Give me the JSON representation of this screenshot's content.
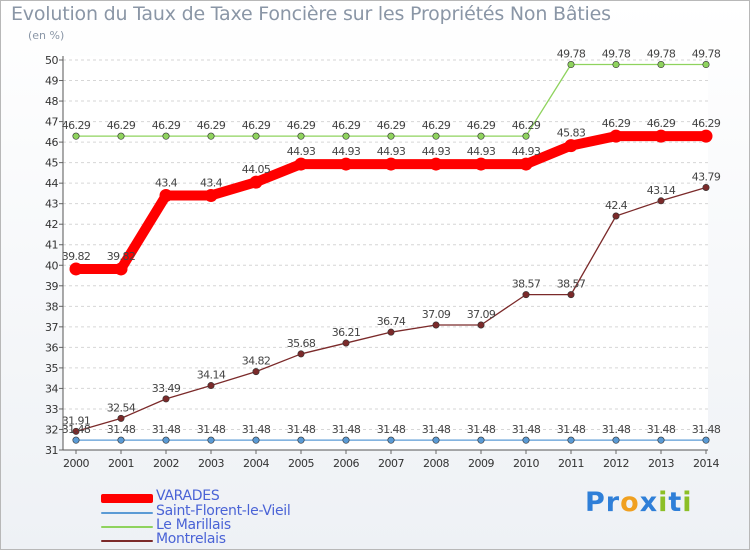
{
  "title": "Evolution du Taux de Taxe Foncière sur les Propriétés Non Bâties",
  "unit_label": "(en %)",
  "logo": {
    "text": "Proxiti",
    "letters": [
      "P",
      "r",
      "o",
      "x",
      "i",
      "t",
      "i"
    ],
    "colors": [
      "#2f7fd8",
      "#2f7fd8",
      "#f0a020",
      "#2f7fd8",
      "#8cbf26",
      "#2f7fd8",
      "#8cbf26"
    ]
  },
  "chart_data": {
    "type": "line",
    "title": "Evolution du Taux de Taxe Foncière sur les Propriétés Non Bâties",
    "ylabel": "(en %)",
    "ylim": [
      31,
      50
    ],
    "yticks": [
      31,
      32,
      33,
      34,
      35,
      36,
      37,
      38,
      39,
      40,
      41,
      42,
      43,
      44,
      45,
      46,
      47,
      48,
      49,
      50
    ],
    "x": [
      "2000",
      "2001",
      "2002",
      "2003",
      "2004",
      "2005",
      "2006",
      "2007",
      "2008",
      "2009",
      "2010",
      "2011",
      "2012",
      "2013",
      "2014"
    ],
    "grid": "horizontal dashed",
    "legend": "bottom-left",
    "series": [
      {
        "name": "VARADES",
        "color": "#ff0000",
        "style": "thick",
        "values": [
          39.82,
          39.82,
          43.4,
          43.4,
          44.05,
          44.93,
          44.93,
          44.93,
          44.93,
          44.93,
          44.93,
          45.83,
          46.29,
          46.29,
          46.29
        ],
        "labels": [
          "39.82",
          "39.82",
          "43.4",
          "43.4",
          "44.05",
          "44.93",
          "44.93",
          "44.93",
          "44.93",
          "44.93",
          "44.93",
          "45.83",
          "46.29",
          "46.29",
          "46.29"
        ]
      },
      {
        "name": "Saint-Florent-le-Vieil",
        "color": "#5b9bd5",
        "style": "thin",
        "values": [
          31.48,
          31.48,
          31.48,
          31.48,
          31.48,
          31.48,
          31.48,
          31.48,
          31.48,
          31.48,
          31.48,
          31.48,
          31.48,
          31.48,
          31.48
        ],
        "labels": [
          "31.48",
          "31.48",
          "31.48",
          "31.48",
          "31.48",
          "31.48",
          "31.48",
          "31.48",
          "31.48",
          "31.48",
          "31.48",
          "31.48",
          "31.48",
          "31.48",
          "31.48"
        ]
      },
      {
        "name": "Le Marillais",
        "color": "#8fd35e",
        "style": "thin",
        "values": [
          46.29,
          46.29,
          46.29,
          46.29,
          46.29,
          46.29,
          46.29,
          46.29,
          46.29,
          46.29,
          46.29,
          49.78,
          49.78,
          49.78,
          49.78
        ],
        "labels": [
          "46.29",
          "46.29",
          "46.29",
          "46.29",
          "46.29",
          "46.29",
          "46.29",
          "46.29",
          "46.29",
          "46.29",
          "46.29",
          "49.78",
          "49.78",
          "49.78",
          "49.78"
        ]
      },
      {
        "name": "Montrelais",
        "color": "#7b2a2a",
        "style": "thin",
        "values": [
          31.91,
          32.54,
          33.49,
          34.14,
          34.82,
          35.68,
          36.21,
          36.74,
          37.09,
          37.09,
          38.57,
          38.57,
          42.4,
          43.14,
          43.79
        ],
        "labels": [
          "31.91",
          "32.54",
          "33.49",
          "34.14",
          "34.82",
          "35.68",
          "36.21",
          "36.74",
          "37.09",
          "37.09",
          "38.57",
          "38.57",
          "42.4",
          "43.14",
          "43.79"
        ]
      }
    ]
  }
}
